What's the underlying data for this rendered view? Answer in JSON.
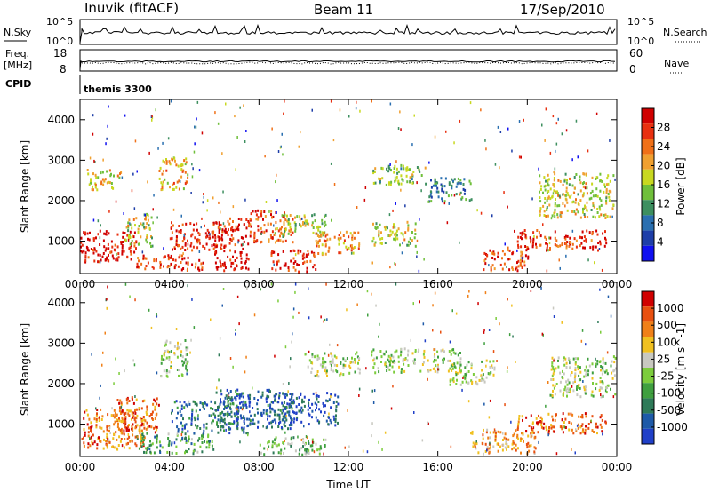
{
  "header": {
    "station": "Inuvik (fitACF)",
    "beam": "Beam 11",
    "date": "17/Sep/2010"
  },
  "aux_panels": {
    "nsky_label": "N.Sky",
    "nsearch_label": "N.Search",
    "nsky_ticks": [
      "10^5",
      "10^0"
    ],
    "nsearch_ticks": [
      "10^5",
      "10^0"
    ],
    "freq_label_1": "Freq.",
    "freq_label_2": "[MHz]",
    "freq_ticks": [
      "18",
      "8"
    ],
    "nave_label": "Nave",
    "nave_ticks": [
      "60",
      "0"
    ],
    "cpid_label": "CPID",
    "cpid_value": "themis 3300"
  },
  "colors": {
    "power_scale": [
      "#1010f0",
      "#1e3ea8",
      "#2a6fb0",
      "#3d8f5f",
      "#6fbf3a",
      "#c8d820",
      "#f0a030",
      "#f07018",
      "#e83010",
      "#d00000"
    ],
    "velocity_scale": [
      "#2040c8",
      "#1e5aa8",
      "#2e7a58",
      "#3f9f3f",
      "#7ccc3c",
      "#c8c8c0",
      "#f0c020",
      "#f08018",
      "#e85010",
      "#d00000"
    ]
  },
  "chart_data": [
    {
      "type": "heatmap",
      "name": "power",
      "ylabel": "Slant Range [km]",
      "xlabel": "",
      "x_ticks": [
        "00:00",
        "04:00",
        "08:00",
        "12:00",
        "16:00",
        "20:00",
        "00:00"
      ],
      "x_range_hours": [
        0,
        24
      ],
      "y_ticks": [
        1000,
        2000,
        3000,
        4000
      ],
      "ylim": [
        200,
        4500
      ],
      "colorbar_label": "Power [dB]",
      "colorbar_ticks": [
        "28",
        "24",
        "20",
        "16",
        "12",
        "8",
        "4"
      ],
      "colorbar_range": [
        0,
        32
      ],
      "regions": [
        {
          "t0": 0.0,
          "t1": 2.5,
          "r0": 500,
          "r1": 1300,
          "level": 0.95
        },
        {
          "t0": 0.3,
          "t1": 1.8,
          "r0": 2300,
          "r1": 2800,
          "level": 0.6
        },
        {
          "t0": 2.0,
          "t1": 3.2,
          "r0": 900,
          "r1": 1700,
          "level": 0.55
        },
        {
          "t0": 2.5,
          "t1": 5.5,
          "r0": 300,
          "r1": 700,
          "level": 0.85
        },
        {
          "t0": 3.5,
          "t1": 4.8,
          "r0": 2300,
          "r1": 3100,
          "level": 0.65
        },
        {
          "t0": 4.0,
          "t1": 6.5,
          "r0": 800,
          "r1": 1500,
          "level": 0.9
        },
        {
          "t0": 6.0,
          "t1": 7.5,
          "r0": 300,
          "r1": 1600,
          "level": 0.92
        },
        {
          "t0": 7.5,
          "t1": 9.5,
          "r0": 1000,
          "r1": 1800,
          "level": 0.8
        },
        {
          "t0": 8.5,
          "t1": 10.5,
          "r0": 250,
          "r1": 800,
          "level": 0.9
        },
        {
          "t0": 9.0,
          "t1": 11.0,
          "r0": 1100,
          "r1": 1700,
          "level": 0.5
        },
        {
          "t0": 10.5,
          "t1": 12.5,
          "r0": 700,
          "r1": 1300,
          "level": 0.7
        },
        {
          "t0": 13.0,
          "t1": 15.5,
          "r0": 2400,
          "r1": 2900,
          "level": 0.45
        },
        {
          "t0": 13.0,
          "t1": 15.0,
          "r0": 900,
          "r1": 1500,
          "level": 0.55
        },
        {
          "t0": 15.5,
          "t1": 17.5,
          "r0": 2000,
          "r1": 2600,
          "level": 0.3
        },
        {
          "t0": 18.0,
          "t1": 20.0,
          "r0": 300,
          "r1": 900,
          "level": 0.8
        },
        {
          "t0": 19.5,
          "t1": 23.5,
          "r0": 800,
          "r1": 1300,
          "level": 0.85
        },
        {
          "t0": 20.5,
          "t1": 24.0,
          "r0": 1600,
          "r1": 2700,
          "level": 0.55
        }
      ]
    },
    {
      "type": "heatmap",
      "name": "velocity",
      "ylabel": "Slant Range [km]",
      "xlabel": "Time UT",
      "x_ticks": [
        "00:00",
        "04:00",
        "08:00",
        "12:00",
        "16:00",
        "20:00",
        "00:00"
      ],
      "x_range_hours": [
        0,
        24
      ],
      "y_ticks": [
        1000,
        2000,
        3000,
        4000
      ],
      "ylim": [
        200,
        4500
      ],
      "colorbar_label": "Velocity [m s^-1]",
      "colorbar_ticks": [
        "1000",
        "500",
        "100",
        "25",
        "-25",
        "-100",
        "-500",
        "-1000"
      ],
      "colorbar_range": [
        -1200,
        1200
      ],
      "regions": [
        {
          "t0": 0.0,
          "t1": 3.0,
          "r0": 400,
          "r1": 1400,
          "level": 0.78
        },
        {
          "t0": 1.5,
          "t1": 3.5,
          "r0": 800,
          "r1": 1700,
          "level": 0.8
        },
        {
          "t0": 2.5,
          "t1": 6.0,
          "r0": 300,
          "r1": 800,
          "level": 0.35
        },
        {
          "t0": 3.5,
          "t1": 4.8,
          "r0": 2200,
          "r1": 3100,
          "level": 0.5
        },
        {
          "t0": 4.0,
          "t1": 7.5,
          "r0": 800,
          "r1": 1600,
          "level": 0.2
        },
        {
          "t0": 6.0,
          "t1": 9.5,
          "r0": 900,
          "r1": 1900,
          "level": 0.15
        },
        {
          "t0": 8.5,
          "t1": 11.5,
          "r0": 1000,
          "r1": 1800,
          "level": 0.12
        },
        {
          "t0": 8.0,
          "t1": 11.0,
          "r0": 250,
          "r1": 700,
          "level": 0.42
        },
        {
          "t0": 10.0,
          "t1": 12.5,
          "r0": 2200,
          "r1": 2800,
          "level": 0.5
        },
        {
          "t0": 13.0,
          "t1": 17.0,
          "r0": 2300,
          "r1": 2900,
          "level": 0.5
        },
        {
          "t0": 16.5,
          "t1": 18.5,
          "r0": 2000,
          "r1": 2600,
          "level": 0.5
        },
        {
          "t0": 17.5,
          "t1": 20.5,
          "r0": 300,
          "r1": 900,
          "level": 0.72
        },
        {
          "t0": 19.5,
          "t1": 23.5,
          "r0": 800,
          "r1": 1300,
          "level": 0.82
        },
        {
          "t0": 21.0,
          "t1": 24.0,
          "r0": 1700,
          "r1": 2700,
          "level": 0.5
        }
      ]
    }
  ]
}
